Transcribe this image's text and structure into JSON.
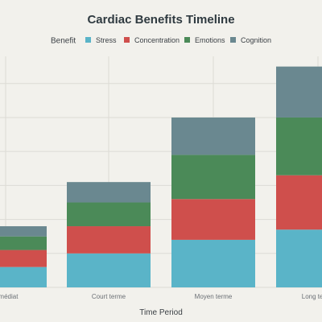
{
  "chart_data": {
    "type": "bar",
    "stacked": true,
    "title": "Cardiac Benefits Timeline",
    "legend_title": "Benefit",
    "legend_position": "top",
    "xlabel": "Time Period",
    "ylabel": "",
    "categories": [
      "Immédiat",
      "Court terme",
      "Moyen terme",
      "Long terme"
    ],
    "series": [
      {
        "name": "Stress",
        "color": "#5ab4c8",
        "values": [
          3,
          5,
          7,
          8.5
        ]
      },
      {
        "name": "Concentration",
        "color": "#cf4f4c",
        "values": [
          2.5,
          4,
          6,
          8
        ]
      },
      {
        "name": "Emotions",
        "color": "#4b8a58",
        "values": [
          2,
          3.5,
          6.5,
          8.5
        ]
      },
      {
        "name": "Cognition",
        "color": "#6a8890",
        "values": [
          1.5,
          3,
          5.5,
          7.5
        ]
      }
    ],
    "ylim": [
      0,
      34
    ],
    "grid": true
  }
}
